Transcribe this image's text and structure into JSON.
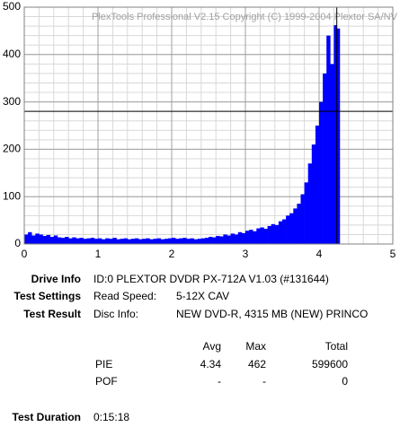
{
  "chart_data": {
    "type": "area",
    "title": "PlexTools Professional V2.15 Copyright (C) 1999-2004 Plextor SA/NV",
    "x": [
      0,
      0.05,
      0.1,
      0.15,
      0.2,
      0.25,
      0.3,
      0.35,
      0.4,
      0.45,
      0.5,
      0.55,
      0.6,
      0.65,
      0.7,
      0.75,
      0.8,
      0.85,
      0.9,
      0.95,
      1.0,
      1.05,
      1.1,
      1.15,
      1.2,
      1.25,
      1.3,
      1.35,
      1.4,
      1.45,
      1.5,
      1.55,
      1.6,
      1.65,
      1.7,
      1.75,
      1.8,
      1.85,
      1.9,
      1.95,
      2.0,
      2.05,
      2.1,
      2.15,
      2.2,
      2.25,
      2.3,
      2.35,
      2.4,
      2.45,
      2.5,
      2.55,
      2.6,
      2.65,
      2.7,
      2.75,
      2.8,
      2.85,
      2.9,
      2.95,
      3.0,
      3.05,
      3.1,
      3.15,
      3.2,
      3.25,
      3.3,
      3.35,
      3.4,
      3.45,
      3.5,
      3.55,
      3.6,
      3.65,
      3.7,
      3.75,
      3.8,
      3.85,
      3.9,
      3.95,
      4.0,
      4.05,
      4.1,
      4.15,
      4.2,
      4.24
    ],
    "values": [
      20,
      25,
      18,
      22,
      20,
      17,
      19,
      15,
      18,
      14,
      13,
      15,
      12,
      14,
      12,
      13,
      11,
      12,
      13,
      11,
      12,
      10,
      12,
      11,
      13,
      10,
      11,
      12,
      10,
      11,
      12,
      10,
      11,
      12,
      10,
      11,
      12,
      10,
      11,
      12,
      13,
      11,
      12,
      13,
      11,
      12,
      10,
      11,
      12,
      13,
      15,
      14,
      17,
      16,
      20,
      18,
      22,
      20,
      25,
      23,
      28,
      30,
      27,
      33,
      35,
      32,
      38,
      42,
      40,
      48,
      52,
      60,
      65,
      75,
      85,
      105,
      130,
      170,
      210,
      250,
      300,
      360,
      440,
      380,
      462,
      455
    ],
    "color": "#0000ff",
    "xlim": [
      0,
      5
    ],
    "xticks": [
      0,
      1,
      2,
      3,
      4,
      5
    ],
    "ylim": [
      0,
      500
    ],
    "yticks": [
      0,
      100,
      200,
      300,
      400,
      500
    ],
    "grid": true,
    "minor_grid": {
      "x": 0.2,
      "y": 20
    },
    "reference_lines": {
      "x": 4.24,
      "y": 280
    }
  },
  "report": {
    "drive_info": {
      "label": "Drive Info",
      "value": "ID:0 PLEXTOR DVDR PX-712A V1.03 (#131644)"
    },
    "test_settings": {
      "label": "Test Settings",
      "key": "Read Speed:",
      "value": "5-12X CAV"
    },
    "test_result": {
      "label": "Test Result",
      "key": "Disc Info:",
      "value": "NEW DVD-R, 4315 MB (NEW) PRINCO"
    },
    "table": {
      "header": [
        "Avg",
        "Max",
        "Total"
      ],
      "rows": [
        [
          "PIE",
          4.34,
          462,
          599600
        ],
        [
          "POF",
          "-",
          "-",
          0
        ]
      ]
    },
    "test_duration": {
      "label": "Test Duration",
      "value": "0:15:18"
    }
  }
}
